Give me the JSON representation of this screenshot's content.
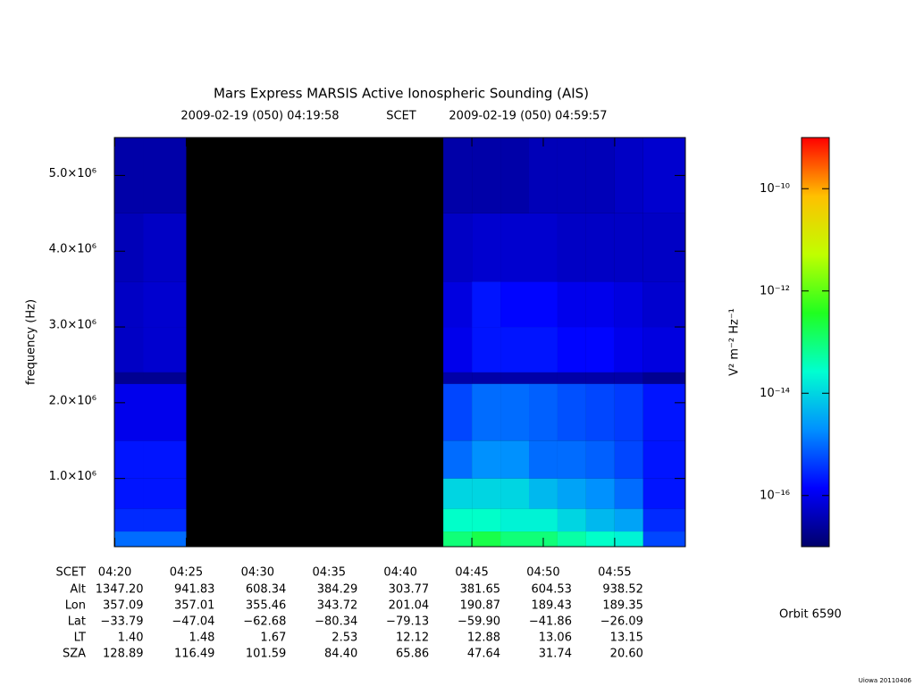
{
  "chart_data": {
    "type": "spectrogram",
    "title": "Mars Express MARSIS Active Ionospheric Sounding (AIS)",
    "subtitle_start": "2009-02-19 (050) 04:19:58",
    "subtitle_mid": "SCET",
    "subtitle_end": "2009-02-19 (050) 04:59:57",
    "ylabel": "frequency (Hz)",
    "xlim": [
      "04:19:58",
      "04:59:57"
    ],
    "xticks": [
      "04:20",
      "04:25",
      "04:30",
      "04:35",
      "04:40",
      "04:45",
      "04:50",
      "04:55"
    ],
    "ylim": [
      100000,
      5500000
    ],
    "yticks": [
      {
        "value": 1000000,
        "label": "1.0×10⁶"
      },
      {
        "value": 2000000,
        "label": "2.0×10⁶"
      },
      {
        "value": 3000000,
        "label": "3.0×10⁶"
      },
      {
        "value": 4000000,
        "label": "4.0×10⁶"
      },
      {
        "value": 5000000,
        "label": "5.0×10⁶"
      }
    ],
    "time_bins": [
      "04:19:58",
      "04:22",
      "04:25",
      "04:43",
      "04:45",
      "04:47",
      "04:49",
      "04:51",
      "04:53",
      "04:55",
      "04:57",
      "04:59:57"
    ],
    "freq_bins": [
      100000,
      300000,
      600000,
      1000000,
      1500000,
      2250000,
      2400000,
      3000000,
      3600000,
      4500000,
      5500000
    ],
    "z": [
      [
        1e-15,
        3e-16,
        2e-16,
        2e-16,
        1e-16,
        2e-17,
        5e-17,
        5e-17,
        4e-17,
        3e-17
      ],
      [
        1e-15,
        3e-16,
        2e-16,
        2e-16,
        1e-16,
        2e-17,
        6e-17,
        6e-17,
        5e-17,
        3e-17
      ],
      [
        null,
        null,
        null,
        null,
        null,
        null,
        null,
        null,
        null,
        null
      ],
      [
        1e-13,
        3e-14,
        1e-14,
        1e-15,
        5e-16,
        3e-17,
        1e-16,
        8e-17,
        5e-17,
        3e-17
      ],
      [
        2e-13,
        3e-14,
        1e-14,
        2e-15,
        1e-15,
        3e-17,
        2e-16,
        2e-16,
        6e-17,
        3e-17
      ],
      [
        1e-13,
        2e-14,
        1e-14,
        2e-15,
        1e-15,
        3e-17,
        2e-16,
        1.5e-16,
        6e-17,
        3e-17
      ],
      [
        1e-13,
        2e-14,
        5e-15,
        1e-15,
        8e-16,
        3e-17,
        2e-16,
        1.5e-16,
        6e-17,
        4e-17
      ],
      [
        5e-14,
        1e-14,
        3e-15,
        1e-15,
        6e-16,
        3e-17,
        1.5e-16,
        1e-16,
        5e-17,
        4e-17
      ],
      [
        3e-14,
        5e-15,
        2e-15,
        8e-16,
        5e-16,
        3e-17,
        1.5e-16,
        1e-16,
        5e-17,
        4e-17
      ],
      [
        2e-14,
        3e-15,
        1e-15,
        5e-16,
        4e-16,
        3e-17,
        1e-16,
        8e-17,
        5e-17,
        5e-17
      ],
      [
        5e-16,
        3e-16,
        2e-16,
        2e-16,
        2e-16,
        2e-17,
        8e-17,
        6e-17,
        5e-17,
        6e-17
      ]
    ],
    "zlim": [
      1e-17,
      1e-09
    ],
    "zlog": true,
    "zticks": [
      {
        "value": 1e-10,
        "label": "10⁻¹⁰"
      },
      {
        "value": 1e-12,
        "label": "10⁻¹²"
      },
      {
        "value": 1e-14,
        "label": "10⁻¹⁴"
      },
      {
        "value": 1e-16,
        "label": "10⁻¹⁶"
      }
    ],
    "zlabel": "V² m⁻² Hz⁻¹",
    "colormap": [
      "#00006a",
      "#0000ff",
      "#0090ff",
      "#00ffd0",
      "#20ff20",
      "#c0ff00",
      "#ffc000",
      "#ff0000"
    ]
  },
  "ephemeris": {
    "header": "SCET",
    "rows": [
      {
        "label": "Alt",
        "values": [
          "1347.20",
          "941.83",
          "608.34",
          "384.29",
          "303.77",
          "381.65",
          "604.53",
          "938.52"
        ]
      },
      {
        "label": "Lon",
        "values": [
          "357.09",
          "357.01",
          "355.46",
          "343.72",
          "201.04",
          "190.87",
          "189.43",
          "189.35"
        ]
      },
      {
        "label": "Lat",
        "values": [
          "−33.79",
          "−47.04",
          "−62.68",
          "−80.34",
          "−79.13",
          "−59.90",
          "−41.86",
          "−26.09"
        ]
      },
      {
        "label": "LT",
        "values": [
          "1.40",
          "1.48",
          "1.67",
          "2.53",
          "12.12",
          "12.88",
          "13.06",
          "13.15"
        ]
      },
      {
        "label": "SZA",
        "values": [
          "128.89",
          "116.49",
          "101.59",
          "84.40",
          "65.86",
          "47.64",
          "31.74",
          "20.60"
        ]
      }
    ]
  },
  "orbit": "Orbit 6590",
  "credit": "Uiowa 20110406"
}
